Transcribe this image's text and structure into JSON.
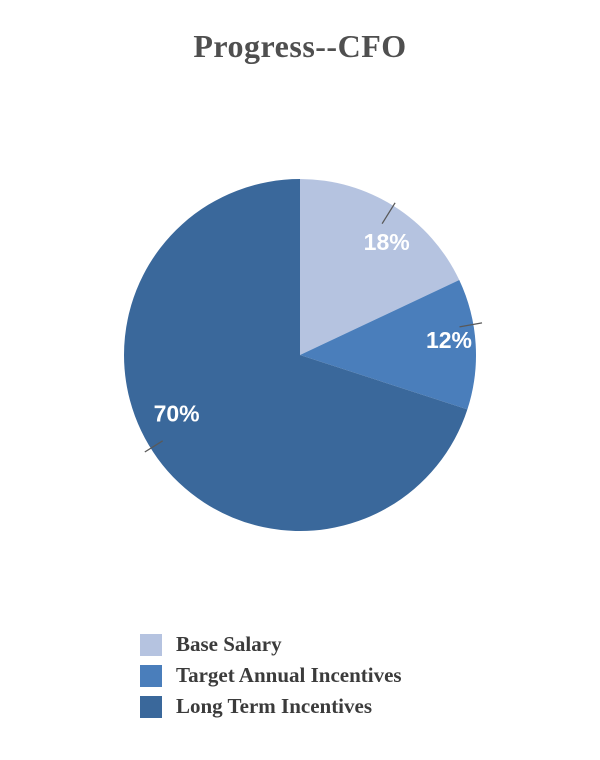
{
  "chart_data": {
    "type": "pie",
    "title": "Progress--CFO",
    "start_angle_deg": 0,
    "direction": "clockwise",
    "legend_position": "bottom-left",
    "data_label_color": "#ffffff",
    "leader_line_color": "#595959",
    "slices": [
      {
        "label": "Base Salary",
        "value": 18,
        "display": "18%",
        "color": "#b5c3e0"
      },
      {
        "label": "Target Annual Incentives",
        "value": 12,
        "display": "12%",
        "color": "#4a7ebb"
      },
      {
        "label": "Long Term Incentives",
        "value": 70,
        "display": "70%",
        "color": "#3a689b"
      }
    ]
  }
}
